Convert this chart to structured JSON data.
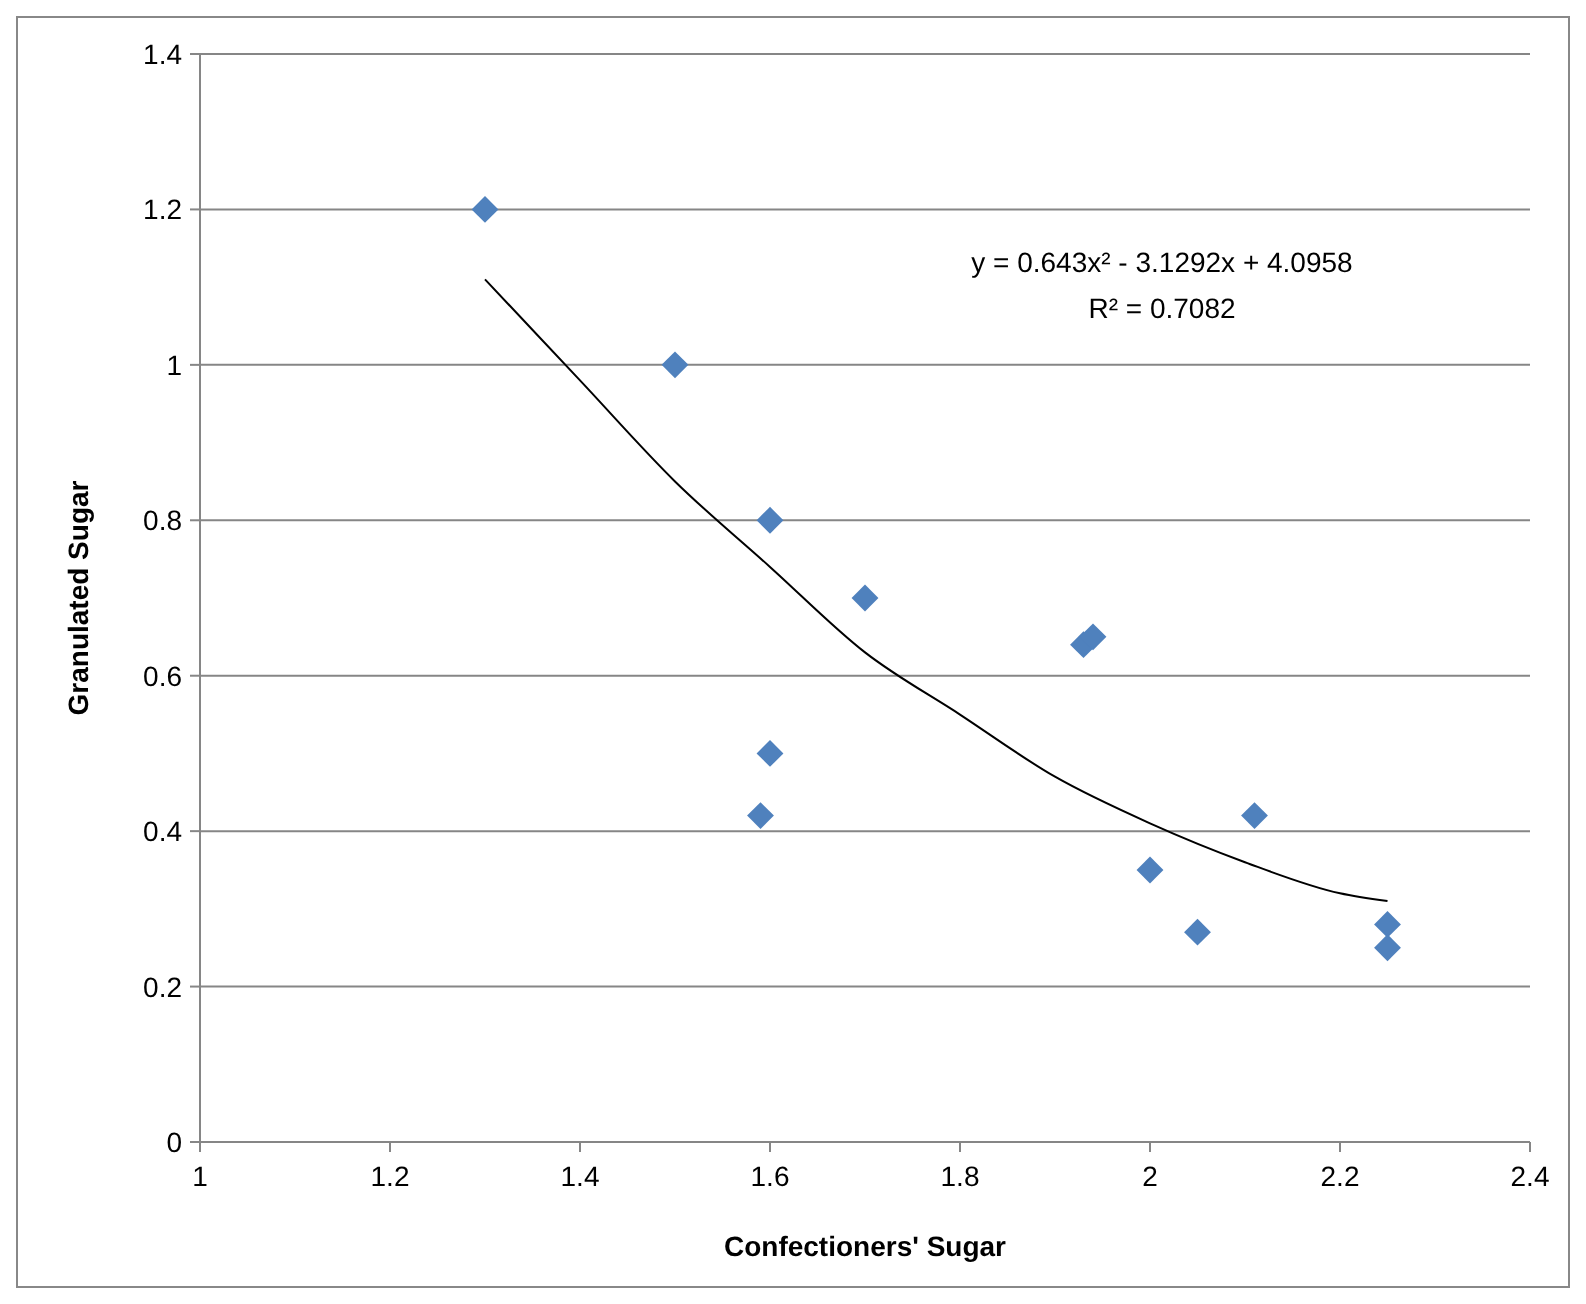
{
  "chart_data": {
    "type": "scatter",
    "xlabel": "Confectioners' Sugar",
    "ylabel": "Granulated Sugar",
    "annotations": [
      "y = 0.643x² - 3.1292x + 4.0958",
      "R² = 0.7082"
    ],
    "series": [
      {
        "color": "#4f81bd",
        "marker": "diamond",
        "x": [
          1.3,
          1.5,
          1.6,
          1.7,
          1.93,
          1.94,
          1.6,
          1.59,
          2.11,
          2.0,
          2.05,
          2.25,
          2.25
        ],
        "values": [
          1.2,
          1.0,
          0.8,
          0.7,
          0.64,
          0.65,
          0.5,
          0.42,
          0.42,
          0.35,
          0.27,
          0.28,
          0.25
        ]
      },
      {
        "type": "line",
        "color": "#000000",
        "marker": "none",
        "x": [
          1.3,
          1.4,
          1.5,
          1.6,
          1.7,
          1.8,
          1.9,
          2.0,
          2.1,
          2.2,
          2.25
        ],
        "values": [
          1.11,
          0.98,
          0.85,
          0.74,
          0.63,
          0.55,
          0.47,
          0.41,
          0.36,
          0.32,
          0.31
        ]
      }
    ],
    "xlim": [
      1,
      2.4
    ],
    "xticks": [
      1,
      1.2,
      1.4,
      1.6,
      1.8,
      2,
      2.2,
      2.4
    ],
    "ylim": [
      0,
      1.4
    ],
    "yticks": [
      0,
      0.2,
      0.4,
      0.6,
      0.8,
      1,
      1.2,
      1.4
    ],
    "grid": "y"
  }
}
